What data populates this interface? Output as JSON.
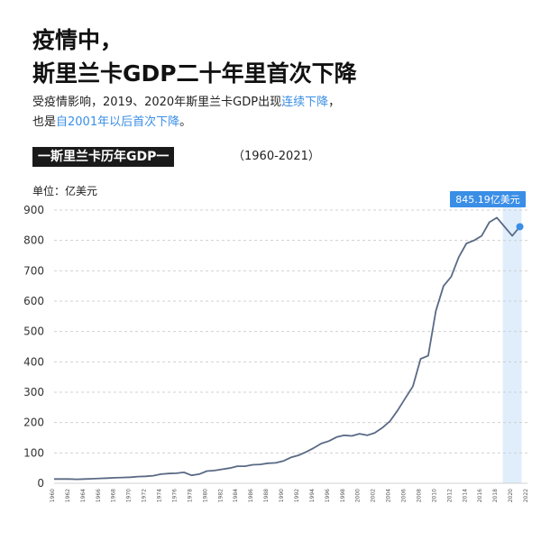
{
  "header": {
    "title_line1": "疫情中，",
    "title_line2": "斯里兰卡GDP二十年里首次下降",
    "subtitle_line1_pre": "受疫情影响，2019、2020年斯里兰卡GDP出现",
    "subtitle_line1_hl": "连续下降",
    "subtitle_line1_post": "，",
    "subtitle_line2_pre": "也是",
    "subtitle_line2_hl": "自2001年以后首次下降",
    "subtitle_line2_post": "。"
  },
  "section_label": "一斯里兰卡历年GDP一",
  "year_range": "（1960-2021）",
  "unit_label": "单位：亿美元",
  "colors": {
    "line": "#5a6a85",
    "accent": "#3a8ee6",
    "highlight_band": "#d6e8fb",
    "grid": "#d0d0d0"
  },
  "chart_data": {
    "type": "line",
    "ylabel": "单位：亿美元",
    "ylim": [
      0,
      900
    ],
    "yticks": [
      0,
      100,
      200,
      300,
      400,
      500,
      600,
      700,
      800,
      900
    ],
    "xticks": [
      "1960",
      "1962",
      "1964",
      "1966",
      "1968",
      "1970",
      "1972",
      "1974",
      "1976",
      "1978",
      "1980",
      "1982",
      "1984",
      "1986",
      "1988",
      "1990",
      "1992",
      "1994",
      "1996",
      "1998",
      "2000",
      "2002",
      "2004",
      "2006",
      "2008",
      "2010",
      "2012",
      "2014",
      "2016",
      "2018",
      "2020",
      "2022"
    ],
    "grid": true,
    "highlight_range": [
      2019,
      2021
    ],
    "callout": {
      "x": 2021,
      "y": 845.19,
      "label": "845.19亿美元"
    },
    "series": [
      {
        "x": [
          1960,
          1961,
          1962,
          1963,
          1964,
          1965,
          1966,
          1967,
          1968,
          1969,
          1970,
          1971,
          1972,
          1973,
          1974,
          1975,
          1976,
          1977,
          1978,
          1979,
          1980,
          1981,
          1982,
          1983,
          1984,
          1985,
          1986,
          1987,
          1988,
          1989,
          1990,
          1991,
          1992,
          1993,
          1994,
          1995,
          1996,
          1997,
          1998,
          1999,
          2000,
          2001,
          2002,
          2003,
          2004,
          2005,
          2006,
          2007,
          2008,
          2009,
          2010,
          2011,
          2012,
          2013,
          2014,
          2015,
          2016,
          2017,
          2018,
          2019,
          2020,
          2021
        ],
        "values": [
          14,
          14,
          14,
          13,
          14,
          15,
          16,
          17,
          18,
          19,
          20,
          22,
          23,
          25,
          30,
          32,
          33,
          36,
          26,
          30,
          40,
          42,
          46,
          50,
          56,
          56,
          61,
          62,
          66,
          67,
          73,
          85,
          92,
          103,
          116,
          131,
          139,
          152,
          158,
          156,
          163,
          158,
          166,
          183,
          205,
          240,
          280,
          320,
          410,
          420,
          568,
          650,
          680,
          745,
          790,
          800,
          815,
          860,
          875,
          845,
          815,
          845
        ]
      }
    ]
  }
}
